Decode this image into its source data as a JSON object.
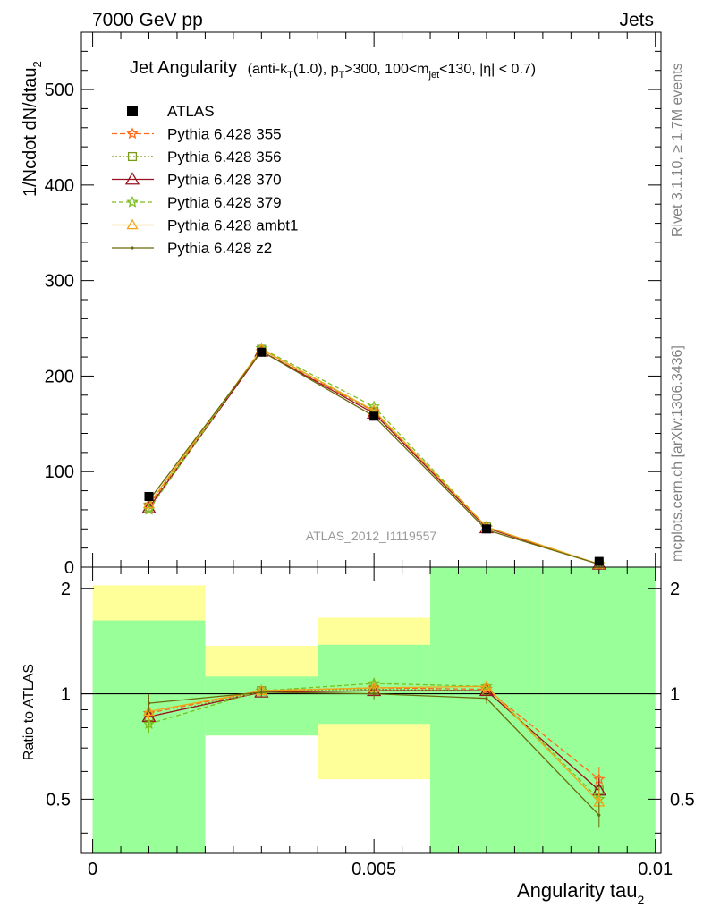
{
  "header": {
    "left": "7000 GeV pp",
    "right": "Jets",
    "side_rivet": "Rivet 3.1.10, ≥ 1.7M events",
    "side_mcplots": "mcplots.cern.ch [arXiv:1306.3436]",
    "watermark": "ATLAS_2012_I1119557"
  },
  "title": {
    "main": "Jet Angularity",
    "detail_pre": "(anti-k",
    "detail_sub1": "T",
    "detail_mid1": "(1.0), p",
    "detail_sub2": "T",
    "detail_mid2": ">300, 100<m",
    "detail_sub3": "jet",
    "detail_post": "<130, |η| < 0.7)"
  },
  "axes": {
    "ylabel_main": "1/Ncdot dN/dtau",
    "ylabel_main_sub": "2",
    "ylabel_ratio": "Ratio to ATLAS",
    "xlabel": "Angularity tau",
    "xlabel_sub": "2"
  },
  "chart_data": [
    {
      "type": "line",
      "x": [
        0.001,
        0.003,
        0.005,
        0.007,
        0.009
      ],
      "xlim": [
        -0.0002,
        0.0101
      ],
      "ylim": [
        0,
        560
      ],
      "x_ticks": [
        {
          "value": 0,
          "label": "0"
        },
        {
          "value": 0.005,
          "label": "0.005"
        },
        {
          "value": 0.01,
          "label": "0.01"
        }
      ],
      "y_ticks": [
        {
          "value": 0,
          "label": "0"
        },
        {
          "value": 100,
          "label": "100"
        },
        {
          "value": 200,
          "label": "200"
        },
        {
          "value": 300,
          "label": "300"
        },
        {
          "value": 400,
          "label": "400"
        },
        {
          "value": 500,
          "label": "500"
        }
      ],
      "legend_position": "top-left",
      "data": {
        "name": "ATLAS",
        "values": [
          74,
          225,
          158,
          40,
          6
        ],
        "color": "#000000"
      },
      "series": [
        {
          "name": "Pythia 6.428 355",
          "values": [
            65,
            226,
            163,
            41,
            3
          ],
          "color": "#ff6a1a",
          "marker": "star",
          "dash": "6,3"
        },
        {
          "name": "Pythia 6.428 356",
          "values": [
            63,
            228,
            163,
            42,
            3
          ],
          "color": "#7a9a1a",
          "marker": "square",
          "dash": "2,2"
        },
        {
          "name": "Pythia 6.428 370",
          "values": [
            62,
            226,
            161,
            41,
            3
          ],
          "color": "#9b1020",
          "marker": "triangle",
          "dash": ""
        },
        {
          "name": "Pythia 6.428 379",
          "values": [
            60,
            229,
            168,
            42,
            3
          ],
          "color": "#7bbf1f",
          "marker": "star",
          "dash": "5,3"
        },
        {
          "name": "Pythia 6.428 ambt1",
          "values": [
            66,
            228,
            164,
            42,
            3
          ],
          "color": "#f2a418",
          "marker": "triangle",
          "dash": ""
        },
        {
          "name": "Pythia 6.428 z2",
          "values": [
            70,
            226,
            158,
            39,
            3
          ],
          "color": "#6b6b0a",
          "marker": "dot",
          "dash": ""
        }
      ]
    },
    {
      "type": "line",
      "x": [
        0.001,
        0.003,
        0.005,
        0.007,
        0.009
      ],
      "xlim": [
        -0.0002,
        0.0101
      ],
      "ylim": [
        0.35,
        2.3
      ],
      "y_ticks": [
        {
          "value": 0.5,
          "label": "0.5"
        },
        {
          "value": 1,
          "label": "1"
        },
        {
          "value": 2,
          "label": "2"
        }
      ],
      "reference_line": 1,
      "bands": [
        {
          "xmin": 0.0,
          "xmax": 0.002,
          "green": [
            0.35,
            1.62
          ],
          "yellow": [
            0.35,
            2.04
          ]
        },
        {
          "xmin": 0.002,
          "xmax": 0.004,
          "green": [
            0.76,
            1.12
          ],
          "yellow": [
            0.76,
            1.37
          ]
        },
        {
          "xmin": 0.004,
          "xmax": 0.006,
          "green": [
            0.82,
            1.38
          ],
          "yellow": [
            0.57,
            1.65
          ]
        },
        {
          "xmin": 0.006,
          "xmax": 0.008,
          "green": [
            0.35,
            2.3
          ],
          "yellow": [
            0.35,
            2.3
          ]
        },
        {
          "xmin": 0.008,
          "xmax": 0.01,
          "green": [
            0.35,
            2.3
          ],
          "yellow": [
            0.35,
            2.3
          ]
        }
      ],
      "series": [
        {
          "name": "Pythia 6.428 355",
          "values": [
            0.88,
            1.02,
            1.04,
            1.03,
            0.57
          ]
        },
        {
          "name": "Pythia 6.428 356",
          "values": [
            0.86,
            1.02,
            1.03,
            1.02,
            0.53
          ]
        },
        {
          "name": "Pythia 6.428 370",
          "values": [
            0.86,
            1.01,
            1.02,
            1.02,
            0.53
          ]
        },
        {
          "name": "Pythia 6.428 379",
          "values": [
            0.82,
            1.02,
            1.07,
            1.05,
            0.5
          ]
        },
        {
          "name": "Pythia 6.428 ambt1",
          "values": [
            0.89,
            1.02,
            1.04,
            1.05,
            0.49
          ]
        },
        {
          "name": "Pythia 6.428 z2",
          "values": [
            0.94,
            1.01,
            1.0,
            0.97,
            0.45
          ]
        }
      ]
    }
  ]
}
